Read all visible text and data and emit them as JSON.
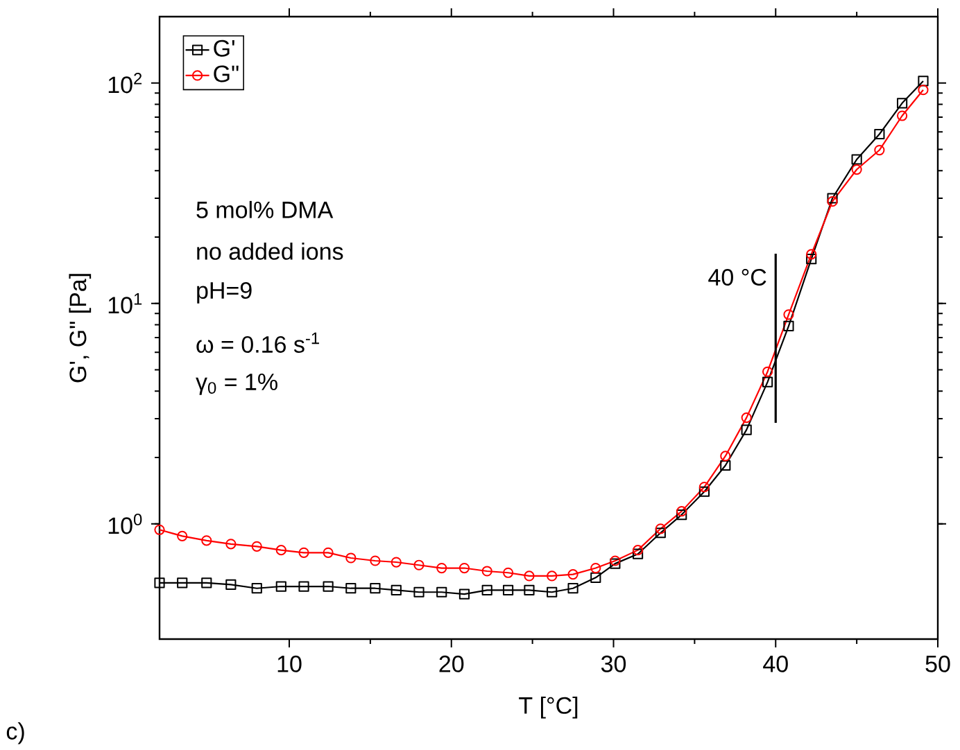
{
  "chart_data": {
    "type": "line",
    "xlabel": "T [°C]",
    "ylabel": "G', G\" [Pa]",
    "x": [
      2.0,
      3.4,
      4.9,
      6.4,
      8.0,
      9.5,
      10.9,
      12.4,
      13.8,
      15.3,
      16.6,
      18.0,
      19.4,
      20.8,
      22.2,
      23.5,
      24.8,
      26.2,
      27.5,
      28.9,
      30.1,
      31.5,
      32.9,
      34.2,
      35.6,
      36.9,
      38.2,
      39.5,
      40.8,
      42.2,
      43.5,
      45.0,
      46.4,
      47.8,
      49.1
    ],
    "series": [
      {
        "name": "G'",
        "color": "#000000",
        "marker": "square",
        "values": [
          0.54,
          0.54,
          0.54,
          0.53,
          0.51,
          0.52,
          0.52,
          0.52,
          0.51,
          0.51,
          0.5,
          0.49,
          0.49,
          0.48,
          0.5,
          0.5,
          0.5,
          0.49,
          0.51,
          0.57,
          0.66,
          0.73,
          0.91,
          1.1,
          1.4,
          1.84,
          2.67,
          4.4,
          7.9,
          15.9,
          30,
          45,
          58.6,
          81,
          102
        ]
      },
      {
        "name": "G\"",
        "color": "#ff0000",
        "marker": "circle",
        "values": [
          0.94,
          0.88,
          0.84,
          0.81,
          0.79,
          0.76,
          0.74,
          0.74,
          0.7,
          0.68,
          0.67,
          0.65,
          0.63,
          0.63,
          0.61,
          0.6,
          0.58,
          0.58,
          0.59,
          0.63,
          0.68,
          0.76,
          0.95,
          1.14,
          1.47,
          2.03,
          3.03,
          4.9,
          8.9,
          16.7,
          29,
          40.5,
          49.6,
          71,
          93
        ]
      }
    ],
    "xlim": [
      2,
      50
    ],
    "xticks": [
      10,
      20,
      30,
      40,
      50
    ],
    "ylim": [
      0.3,
      200
    ],
    "log": "y",
    "yticks": [
      {
        "value": 1,
        "label": "10$^{0}$"
      },
      {
        "value": 10,
        "label": "10$^{1}$"
      },
      {
        "value": 100,
        "label": "10$^{2}$"
      }
    ],
    "legend": "top left",
    "line_style": "solid",
    "ref_lines": [
      {
        "axis": "x",
        "value": 40,
        "label": "40 °C",
        "color": "#000000"
      }
    ],
    "annotations": [
      "5 mol% DMA",
      "no added ions",
      "pH=9",
      "ω = 0.16 s$^{-1}$",
      "γ$_{0}$ = 1%",
      "c)"
    ]
  }
}
